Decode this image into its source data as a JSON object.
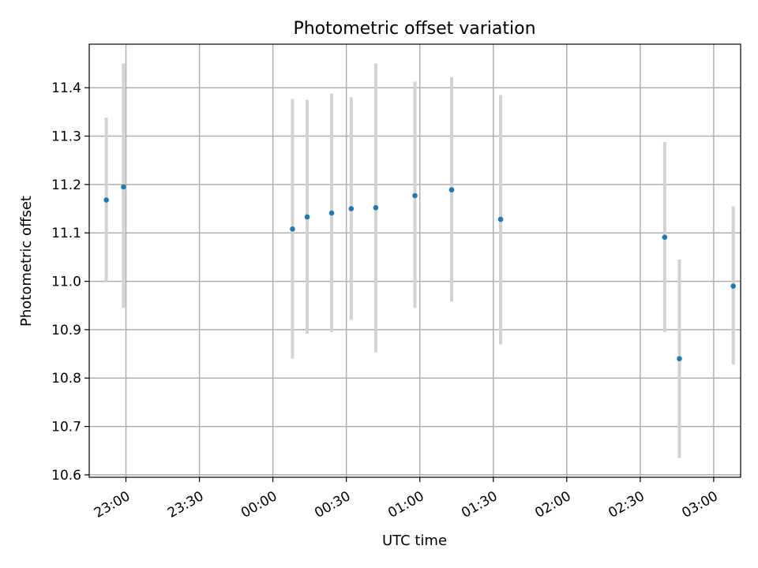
{
  "chart_data": {
    "type": "scatter",
    "title": "Photometric offset variation",
    "xlabel": "UTC time",
    "ylabel": "Photometric offset",
    "x_ticks": [
      "23:00",
      "23:30",
      "00:00",
      "00:30",
      "01:00",
      "01:30",
      "02:00",
      "02:30",
      "03:00"
    ],
    "x_range": [
      "22:45",
      "03:11"
    ],
    "y_ticks": [
      10.6,
      10.7,
      10.8,
      10.9,
      11.0,
      11.1,
      11.2,
      11.3,
      11.4
    ],
    "ylim": [
      10.595,
      11.49
    ],
    "grid": true,
    "colors": {
      "point": "#1f77b4",
      "errorbar": "#d3d3d3"
    },
    "points": [
      {
        "x": "22:52",
        "y": 11.168,
        "lo": 11.0,
        "hi": 11.338
      },
      {
        "x": "22:59",
        "y": 11.195,
        "lo": 10.945,
        "hi": 11.45
      },
      {
        "x": "00:08",
        "y": 11.108,
        "lo": 10.84,
        "hi": 11.377
      },
      {
        "x": "00:14",
        "y": 11.133,
        "lo": 10.892,
        "hi": 11.375
      },
      {
        "x": "00:24",
        "y": 11.141,
        "lo": 10.895,
        "hi": 11.388
      },
      {
        "x": "00:32",
        "y": 11.15,
        "lo": 10.92,
        "hi": 11.38
      },
      {
        "x": "00:42",
        "y": 11.152,
        "lo": 10.853,
        "hi": 11.45
      },
      {
        "x": "00:58",
        "y": 11.177,
        "lo": 10.945,
        "hi": 11.413
      },
      {
        "x": "01:13",
        "y": 11.189,
        "lo": 10.958,
        "hi": 11.422
      },
      {
        "x": "01:33",
        "y": 11.128,
        "lo": 10.87,
        "hi": 11.385
      },
      {
        "x": "02:40",
        "y": 11.091,
        "lo": 10.895,
        "hi": 11.288
      },
      {
        "x": "02:46",
        "y": 10.84,
        "lo": 10.635,
        "hi": 11.045
      },
      {
        "x": "03:08",
        "y": 10.99,
        "lo": 10.828,
        "hi": 11.155
      }
    ]
  }
}
